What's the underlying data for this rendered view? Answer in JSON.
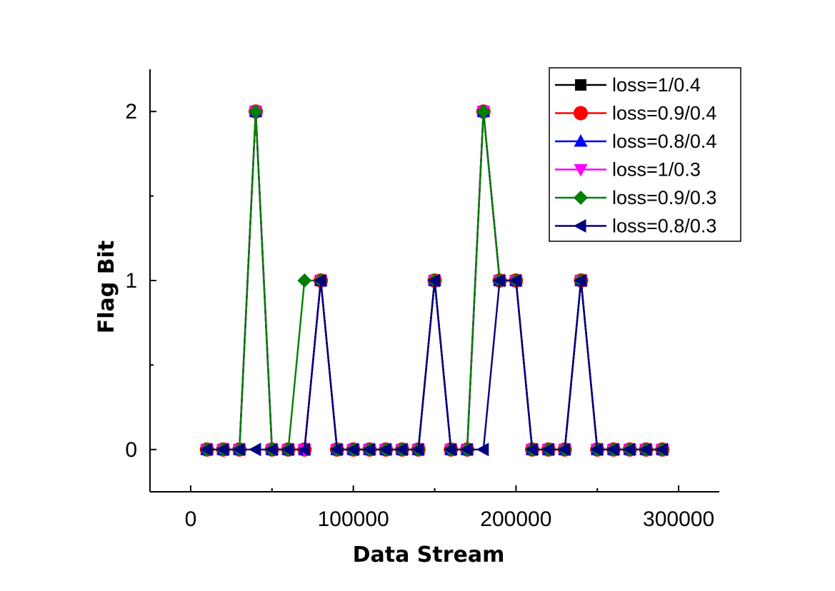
{
  "chart_data": {
    "type": "line",
    "xlabel": "Data Stream",
    "ylabel": "Flag Bit",
    "xlim": [
      -25000,
      325000
    ],
    "ylim": [
      -0.25,
      2.25
    ],
    "xticks": [
      0,
      100000,
      200000,
      300000
    ],
    "xtick_labels": [
      "0",
      "100000",
      "200000",
      "300000"
    ],
    "yticks": [
      0,
      1,
      2
    ],
    "ytick_labels": [
      "0",
      "1",
      "2"
    ],
    "legend_placement": "top-right",
    "grid": false,
    "x": [
      10000,
      20000,
      30000,
      40000,
      50000,
      60000,
      70000,
      80000,
      90000,
      100000,
      110000,
      120000,
      130000,
      140000,
      150000,
      160000,
      170000,
      180000,
      190000,
      200000,
      210000,
      220000,
      230000,
      240000,
      250000,
      260000,
      270000,
      280000,
      290000
    ],
    "series": [
      {
        "name": "loss=1/0.4",
        "color": "#000000",
        "marker": "square",
        "values": [
          0,
          0,
          0,
          2,
          0,
          0,
          0,
          1,
          0,
          0,
          0,
          0,
          0,
          0,
          1,
          0,
          0,
          2,
          1,
          1,
          0,
          0,
          0,
          1,
          0,
          0,
          0,
          0,
          0
        ]
      },
      {
        "name": "loss=0.9/0.4",
        "color": "#ff0000",
        "marker": "circle",
        "values": [
          0,
          0,
          0,
          2,
          0,
          0,
          0,
          1,
          0,
          0,
          0,
          0,
          0,
          0,
          1,
          0,
          0,
          2,
          1,
          1,
          0,
          0,
          0,
          1,
          0,
          0,
          0,
          0,
          0
        ]
      },
      {
        "name": "loss=0.8/0.4",
        "color": "#0000ff",
        "marker": "triangle-up",
        "values": [
          0,
          0,
          0,
          2,
          0,
          0,
          0,
          1,
          0,
          0,
          0,
          0,
          0,
          0,
          1,
          0,
          0,
          2,
          1,
          1,
          0,
          0,
          0,
          1,
          0,
          0,
          0,
          0,
          0
        ]
      },
      {
        "name": "loss=1/0.3",
        "color": "#ff00ff",
        "marker": "triangle-down",
        "values": [
          0,
          0,
          0,
          2,
          0,
          0,
          0,
          1,
          0,
          0,
          0,
          0,
          0,
          0,
          1,
          0,
          0,
          2,
          1,
          1,
          0,
          0,
          0,
          1,
          0,
          0,
          0,
          0,
          0
        ]
      },
      {
        "name": "loss=0.9/0.3",
        "color": "#008000",
        "marker": "diamond",
        "values": [
          0,
          0,
          0,
          2,
          0,
          0,
          1,
          1,
          0,
          0,
          0,
          0,
          0,
          0,
          1,
          0,
          0,
          2,
          1,
          1,
          0,
          0,
          0,
          1,
          0,
          0,
          0,
          0,
          0
        ]
      },
      {
        "name": "loss=0.8/0.3",
        "color": "#000080",
        "marker": "triangle-left",
        "values": [
          0,
          0,
          0,
          0,
          0,
          0,
          0,
          1,
          0,
          0,
          0,
          0,
          0,
          0,
          1,
          0,
          0,
          0,
          1,
          1,
          0,
          0,
          0,
          1,
          0,
          0,
          0,
          0,
          0
        ]
      }
    ]
  }
}
